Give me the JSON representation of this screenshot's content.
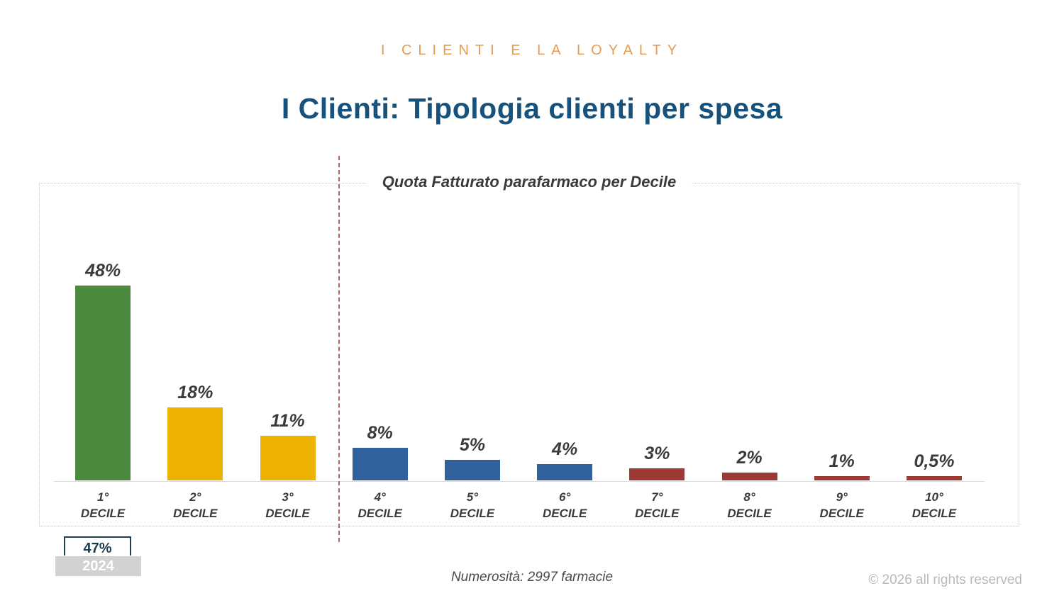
{
  "header": {
    "eyebrow": "I CLIENTI E LA LOYALTY",
    "title": "I Clienti: Tipologia clienti per spesa"
  },
  "chart_data": {
    "type": "bar",
    "title": "Quota Fatturato parafarmaco per Decile",
    "categories": [
      "1° DECILE",
      "2° DECILE",
      "3° DECILE",
      "4° DECILE",
      "5° DECILE",
      "6° DECILE",
      "7° DECILE",
      "8° DECILE",
      "9° DECILE",
      "10° DECILE"
    ],
    "category_ordinals": [
      "1°",
      "2°",
      "3°",
      "4°",
      "5°",
      "6°",
      "7°",
      "8°",
      "9°",
      "10°"
    ],
    "category_word": "DECILE",
    "values": [
      48,
      18,
      11,
      8,
      5,
      4,
      3,
      2,
      1,
      0.5
    ],
    "value_labels": [
      "48%",
      "18%",
      "11%",
      "8%",
      "5%",
      "4%",
      "3%",
      "2%",
      "1%",
      "0,5%"
    ],
    "bar_colors": [
      "#4c8a3f",
      "#edb102",
      "#edb102",
      "#32629d",
      "#32629d",
      "#32629d",
      "#9d3a35",
      "#9d3a35",
      "#9d3a35",
      "#9d3a35"
    ],
    "xlabel": "",
    "ylabel": "",
    "ylim": [
      0,
      50
    ],
    "grid": false,
    "legend": "none",
    "separator_after_category_index": 2,
    "separator_color": "#a86a6a"
  },
  "annotations": {
    "year_value": "47%",
    "year_label": "2024"
  },
  "footer": {
    "note": "Numerosità: 2997 farmacie",
    "copyright": "© 2026 all rights reserved"
  }
}
